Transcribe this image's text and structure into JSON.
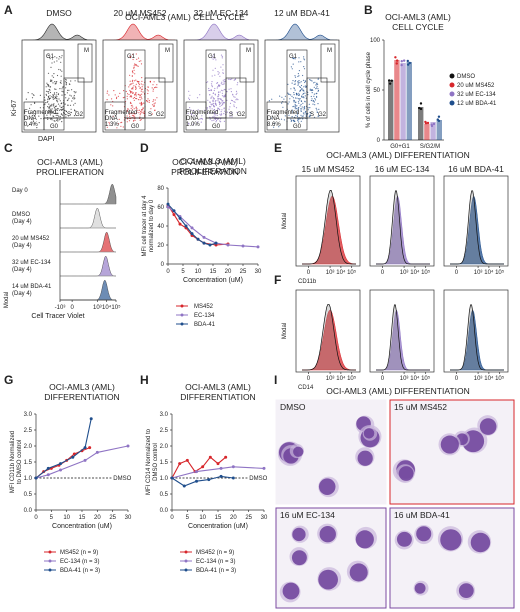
{
  "colors": {
    "dmso": "#111111",
    "ms452": "#d7262b",
    "ec134": "#8f74c4",
    "bda41": "#1f4e8c",
    "panelA_dmso": "#2b2b2b"
  },
  "panels": {
    "A": "A",
    "B": "B",
    "C": "C",
    "D": "D",
    "E": "E",
    "F": "F",
    "G": "G",
    "H": "H",
    "I": "I"
  },
  "panelA": {
    "conditions": [
      "DMSO",
      "20 uM MS452",
      "32 uM EC-134",
      "12 uM BDA-41"
    ],
    "title": "OCI-AML3 (AML) CELL CYCLE",
    "ylabel": "Ki-67",
    "xlabel": "DAPI",
    "gates": {
      "g1": "G1",
      "m": "M",
      "s": "S",
      "g2": "G2",
      "g0": "G0"
    },
    "fragmented_label": "Fragmented\nDNA",
    "fragmented": [
      "0.4%",
      "1.3%",
      "1.0%",
      "8.6%"
    ]
  },
  "chart_data": [
    {
      "panel": "B",
      "type": "bar",
      "title": "OCI-AML3 (AML)\nCELL CYCLE",
      "ylabel": "% of cells in cell cycle phase",
      "categories": [
        "G0+G1",
        "S/G2/M"
      ],
      "ylim": [
        0,
        100
      ],
      "yticks": [
        0,
        50,
        100
      ],
      "series": [
        {
          "name": "DMSO",
          "values": [
            60,
            33
          ]
        },
        {
          "name": "20 uM MS452",
          "values": [
            80,
            16
          ]
        },
        {
          "name": "32 uM EC-134",
          "values": [
            77,
            18
          ]
        },
        {
          "name": "12 uM BDA-41",
          "values": [
            78,
            20
          ]
        }
      ]
    },
    {
      "panel": "C",
      "type": "area",
      "title": "OCI-AML3 (AML)\nPROLIFERATION",
      "ylabel": "Modal",
      "xlabel": "Cell Tracer Violet",
      "xticks": [
        "-10³",
        "0",
        "10³",
        "10⁴",
        "10⁵"
      ],
      "tracks": [
        {
          "label": "Day 0",
          "peak": 4.6
        },
        {
          "label": "DMSO\n(Day 4)",
          "peak": 3.0
        },
        {
          "label": "20 uM MS452\n(Day 4)",
          "peak": 4.0
        },
        {
          "label": "32 uM EC-134\n(Day 4)",
          "peak": 3.9
        },
        {
          "label": "14 uM BDA-41\n(Day 4)",
          "peak": 3.8
        }
      ]
    },
    {
      "panel": "D",
      "type": "line",
      "title": "OCI-AML3 (AML)\nPROLIFERATION",
      "xlabel": "Concentration (uM)",
      "ylabel": "MFI cell tracer at day 4\nnormalized to day 0",
      "xlim": [
        0,
        30
      ],
      "ylim": [
        0,
        80
      ],
      "xticks": [
        0,
        5,
        10,
        15,
        20,
        25,
        30
      ],
      "yticks": [
        0,
        20,
        40,
        60,
        80
      ],
      "series": [
        {
          "name": "MS452",
          "x": [
            0,
            2,
            4,
            6,
            8,
            10,
            12,
            16,
            20
          ],
          "y": [
            62,
            52,
            42,
            38,
            30,
            26,
            22,
            20,
            21
          ]
        },
        {
          "name": "EC-134",
          "x": [
            0,
            4,
            8,
            12,
            16,
            20,
            25,
            30
          ],
          "y": [
            60,
            50,
            38,
            28,
            22,
            20,
            19,
            18
          ]
        },
        {
          "name": "BDA-41",
          "x": [
            0,
            2,
            4,
            6,
            8,
            10,
            12,
            14,
            16
          ],
          "y": [
            63,
            56,
            48,
            40,
            32,
            26,
            22,
            20,
            22
          ]
        }
      ]
    },
    {
      "panel": "G",
      "type": "line",
      "title": "OCI-AML3 (AML)\nDIFFERENTIATION",
      "xlabel": "Concentration (uM)",
      "ylabel": "MFI CD11b Normalized\nto DMSO control",
      "xlim": [
        0,
        30
      ],
      "ylim": [
        0,
        3.0
      ],
      "xticks": [
        0,
        5,
        10,
        15,
        20,
        25,
        30
      ],
      "yticks": [
        0.0,
        0.5,
        1.0,
        1.5,
        2.0,
        2.5,
        3.0
      ],
      "reference": {
        "label": "DMSO",
        "y": 1.0
      },
      "series": [
        {
          "name": "MS452 (n = 9)",
          "x": [
            0,
            2.5,
            5,
            7.5,
            10,
            12.5,
            15,
            17.5
          ],
          "y": [
            1.0,
            1.2,
            1.3,
            1.4,
            1.55,
            1.75,
            1.85,
            1.95
          ]
        },
        {
          "name": "EC-134 (n = 3)",
          "x": [
            0,
            4,
            8,
            16,
            20,
            30
          ],
          "y": [
            1.0,
            1.1,
            1.25,
            1.55,
            1.8,
            2.0
          ]
        },
        {
          "name": "BDA-41 (n = 3)",
          "x": [
            0,
            4,
            8,
            12,
            16,
            18
          ],
          "y": [
            1.0,
            1.3,
            1.45,
            1.65,
            1.95,
            2.85
          ]
        }
      ]
    },
    {
      "panel": "H",
      "type": "line",
      "title": "OCI-AML3 (AML)\nDIFFERENTIATION",
      "xlabel": "Concentration (uM)",
      "ylabel": "MFI CD14 Normalized to\nDMSO control",
      "xlim": [
        0,
        30
      ],
      "ylim": [
        0,
        3.0
      ],
      "xticks": [
        0,
        5,
        10,
        15,
        20,
        25,
        30
      ],
      "yticks": [
        0.0,
        0.5,
        1.0,
        1.5,
        2.0,
        2.5,
        3.0
      ],
      "reference": {
        "label": "DMSO",
        "y": 1.0
      },
      "series": [
        {
          "name": "MS452 (n = 9)",
          "x": [
            0,
            2.5,
            5,
            7.5,
            10,
            12.5,
            15,
            17.5
          ],
          "y": [
            1.0,
            1.45,
            1.55,
            1.2,
            1.35,
            1.65,
            1.45,
            1.65
          ]
        },
        {
          "name": "EC-134 (n = 3)",
          "x": [
            0,
            8,
            16,
            20,
            30
          ],
          "y": [
            1.0,
            1.2,
            1.3,
            1.35,
            1.3
          ]
        },
        {
          "name": "BDA-41 (n = 3)",
          "x": [
            0,
            4,
            8,
            12,
            16,
            20
          ],
          "y": [
            1.0,
            0.75,
            0.9,
            0.95,
            1.05,
            1.0
          ]
        }
      ]
    }
  ],
  "panelEF": {
    "title": "OCI-AML3 (AML) DIFFERENTIATION",
    "conditions": [
      "15 uM MS452",
      "16 uM EC-134",
      "16 uM BDA-41"
    ],
    "markers": [
      "CD11b",
      "CD14"
    ],
    "ylabel": "Modal",
    "xticks": [
      "0",
      "10³",
      "10⁴",
      "10⁵"
    ]
  },
  "panelI": {
    "title": "OCI-AML3 (AML) DIFFERENTIATION",
    "images": [
      "DMSO",
      "15 uM MS452",
      "16 uM EC-134",
      "16 uM BDA-41"
    ]
  }
}
